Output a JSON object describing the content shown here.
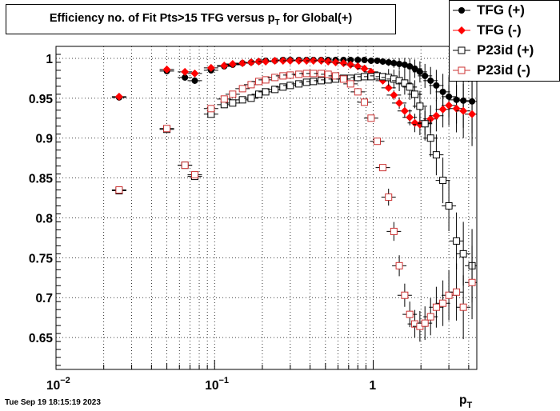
{
  "title": {
    "main": "Efficiency no. of Fit Pts>15 TFG versus p",
    "sub": "T",
    "suffix": " for Global(+)"
  },
  "footer": {
    "timestamp": "Tue Sep 19 18:15:19 2023"
  },
  "legend": {
    "items": [
      {
        "label": "TFG (+)",
        "marker": "filled-circle",
        "color": "#000000"
      },
      {
        "label": "TFG (-)",
        "marker": "filled-diamond",
        "color": "#ff0000"
      },
      {
        "label": "P23id (+)",
        "marker": "open-square",
        "color": "#000000"
      },
      {
        "label": "P23id (-)",
        "marker": "open-square",
        "color": "#cc3333"
      }
    ]
  },
  "chart_data": {
    "type": "scatter",
    "title": "Efficiency no. of Fit Pts>15 TFG versus pT for Global(+)",
    "xlabel": "p",
    "xlabel_sub": "T",
    "ylabel": "",
    "x_scale": "log",
    "xlim": [
      0.01,
      4.5
    ],
    "ylim": [
      0.61,
      1.015
    ],
    "grid": true,
    "x_tick_labels": [
      {
        "base": "10",
        "exp": "−2",
        "value": 0.01
      },
      {
        "base": "10",
        "exp": "−1",
        "value": 0.1
      },
      {
        "base": "1",
        "exp": "",
        "value": 1
      }
    ],
    "y_ticks": [
      {
        "label": "0.65",
        "value": 0.65
      },
      {
        "label": "0.7",
        "value": 0.7
      },
      {
        "label": "0.75",
        "value": 0.75
      },
      {
        "label": "0.8",
        "value": 0.8
      },
      {
        "label": "0.85",
        "value": 0.85
      },
      {
        "label": "0.9",
        "value": 0.9
      },
      {
        "label": "0.95",
        "value": 0.95
      },
      {
        "label": "1",
        "value": 1.0
      }
    ],
    "series": [
      {
        "name": "TFG (+)",
        "color": "#000000",
        "marker": "filled-circle",
        "points": [
          [
            0.025,
            0.951
          ],
          [
            0.05,
            0.984
          ],
          [
            0.065,
            0.976
          ],
          [
            0.075,
            0.972
          ],
          [
            0.095,
            0.985
          ],
          [
            0.115,
            0.99
          ],
          [
            0.13,
            0.992
          ],
          [
            0.15,
            0.994
          ],
          [
            0.17,
            0.995
          ],
          [
            0.19,
            0.996
          ],
          [
            0.21,
            0.997
          ],
          [
            0.24,
            0.997
          ],
          [
            0.27,
            0.998
          ],
          [
            0.3,
            0.998
          ],
          [
            0.34,
            0.998
          ],
          [
            0.38,
            0.998
          ],
          [
            0.42,
            0.998
          ],
          [
            0.47,
            0.998
          ],
          [
            0.52,
            0.998
          ],
          [
            0.58,
            0.998
          ],
          [
            0.65,
            0.998
          ],
          [
            0.72,
            0.998
          ],
          [
            0.8,
            0.998
          ],
          [
            0.88,
            0.998
          ],
          [
            0.97,
            0.997
          ],
          [
            1.06,
            0.997
          ],
          [
            1.15,
            0.996
          ],
          [
            1.25,
            0.995
          ],
          [
            1.35,
            0.994
          ],
          [
            1.46,
            0.993
          ],
          [
            1.58,
            0.992
          ],
          [
            1.7,
            0.99
          ],
          [
            1.83,
            0.987
          ],
          [
            1.97,
            0.983
          ],
          [
            2.12,
            0.978
          ],
          [
            2.3,
            0.972
          ],
          [
            2.5,
            0.966
          ],
          [
            2.75,
            0.958
          ],
          [
            3.0,
            0.952
          ],
          [
            3.35,
            0.948
          ],
          [
            3.7,
            0.947
          ],
          [
            4.2,
            0.946
          ]
        ]
      },
      {
        "name": "TFG (-)",
        "color": "#ff0000",
        "marker": "filled-diamond",
        "points": [
          [
            0.025,
            0.952
          ],
          [
            0.05,
            0.986
          ],
          [
            0.065,
            0.983
          ],
          [
            0.075,
            0.981
          ],
          [
            0.095,
            0.988
          ],
          [
            0.115,
            0.991
          ],
          [
            0.13,
            0.993
          ],
          [
            0.15,
            0.994
          ],
          [
            0.17,
            0.995
          ],
          [
            0.19,
            0.996
          ],
          [
            0.21,
            0.996
          ],
          [
            0.24,
            0.997
          ],
          [
            0.27,
            0.997
          ],
          [
            0.3,
            0.997
          ],
          [
            0.34,
            0.997
          ],
          [
            0.38,
            0.997
          ],
          [
            0.42,
            0.997
          ],
          [
            0.47,
            0.997
          ],
          [
            0.52,
            0.996
          ],
          [
            0.58,
            0.995
          ],
          [
            0.65,
            0.994
          ],
          [
            0.72,
            0.992
          ],
          [
            0.8,
            0.99
          ],
          [
            0.88,
            0.987
          ],
          [
            0.97,
            0.983
          ],
          [
            1.06,
            0.978
          ],
          [
            1.15,
            0.972
          ],
          [
            1.25,
            0.963
          ],
          [
            1.35,
            0.954
          ],
          [
            1.46,
            0.944
          ],
          [
            1.58,
            0.934
          ],
          [
            1.7,
            0.926
          ],
          [
            1.83,
            0.919
          ],
          [
            1.97,
            0.917
          ],
          [
            2.12,
            0.919
          ],
          [
            2.3,
            0.924
          ],
          [
            2.5,
            0.928
          ],
          [
            2.75,
            0.936
          ],
          [
            3.0,
            0.941
          ],
          [
            3.35,
            0.937
          ],
          [
            3.7,
            0.934
          ],
          [
            4.2,
            0.93
          ]
        ]
      },
      {
        "name": "P23id (+)",
        "color": "#000000",
        "marker": "open-square",
        "points": [
          [
            0.025,
            0.834
          ],
          [
            0.05,
            0.911
          ],
          [
            0.065,
            0.866
          ],
          [
            0.075,
            0.852
          ],
          [
            0.095,
            0.93
          ],
          [
            0.115,
            0.942
          ],
          [
            0.13,
            0.944
          ],
          [
            0.15,
            0.948
          ],
          [
            0.17,
            0.95
          ],
          [
            0.19,
            0.955
          ],
          [
            0.21,
            0.958
          ],
          [
            0.24,
            0.961
          ],
          [
            0.27,
            0.964
          ],
          [
            0.3,
            0.966
          ],
          [
            0.34,
            0.968
          ],
          [
            0.38,
            0.97
          ],
          [
            0.42,
            0.971
          ],
          [
            0.47,
            0.972
          ],
          [
            0.52,
            0.973
          ],
          [
            0.58,
            0.974
          ],
          [
            0.65,
            0.975
          ],
          [
            0.72,
            0.975
          ],
          [
            0.8,
            0.976
          ],
          [
            0.88,
            0.977
          ],
          [
            0.97,
            0.977
          ],
          [
            1.06,
            0.978
          ],
          [
            1.15,
            0.977
          ],
          [
            1.25,
            0.976
          ],
          [
            1.35,
            0.974
          ],
          [
            1.46,
            0.972
          ],
          [
            1.58,
            0.969
          ],
          [
            1.7,
            0.964
          ],
          [
            1.83,
            0.955
          ],
          [
            1.97,
            0.94
          ],
          [
            2.12,
            0.918
          ],
          [
            2.3,
            0.9
          ],
          [
            2.5,
            0.879
          ],
          [
            2.75,
            0.847
          ],
          [
            3.0,
            0.815
          ],
          [
            3.35,
            0.771
          ],
          [
            3.7,
            0.755
          ],
          [
            4.2,
            0.74
          ]
        ]
      },
      {
        "name": "P23id (-)",
        "color": "#cc3333",
        "marker": "open-square",
        "points": [
          [
            0.025,
            0.835
          ],
          [
            0.05,
            0.912
          ],
          [
            0.065,
            0.866
          ],
          [
            0.075,
            0.854
          ],
          [
            0.095,
            0.937
          ],
          [
            0.115,
            0.949
          ],
          [
            0.13,
            0.955
          ],
          [
            0.15,
            0.962
          ],
          [
            0.17,
            0.967
          ],
          [
            0.19,
            0.971
          ],
          [
            0.21,
            0.973
          ],
          [
            0.24,
            0.976
          ],
          [
            0.27,
            0.978
          ],
          [
            0.3,
            0.979
          ],
          [
            0.34,
            0.98
          ],
          [
            0.38,
            0.981
          ],
          [
            0.42,
            0.981
          ],
          [
            0.47,
            0.981
          ],
          [
            0.52,
            0.98
          ],
          [
            0.58,
            0.978
          ],
          [
            0.65,
            0.974
          ],
          [
            0.72,
            0.968
          ],
          [
            0.8,
            0.958
          ],
          [
            0.88,
            0.945
          ],
          [
            0.97,
            0.925
          ],
          [
            1.06,
            0.896
          ],
          [
            1.15,
            0.863
          ],
          [
            1.25,
            0.826
          ],
          [
            1.35,
            0.783
          ],
          [
            1.46,
            0.74
          ],
          [
            1.58,
            0.703
          ],
          [
            1.7,
            0.679
          ],
          [
            1.83,
            0.667
          ],
          [
            1.97,
            0.664
          ],
          [
            2.12,
            0.668
          ],
          [
            2.3,
            0.676
          ],
          [
            2.5,
            0.688
          ],
          [
            2.75,
            0.693
          ],
          [
            3.0,
            0.703
          ],
          [
            3.35,
            0.707
          ],
          [
            3.7,
            0.688
          ],
          [
            4.2,
            0.719
          ]
        ]
      }
    ]
  }
}
